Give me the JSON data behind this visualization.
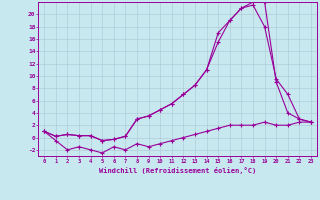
{
  "x": [
    0,
    1,
    2,
    3,
    4,
    5,
    6,
    7,
    8,
    9,
    10,
    11,
    12,
    13,
    14,
    15,
    16,
    17,
    18,
    19,
    20,
    21,
    22,
    23
  ],
  "line_main": [
    1.0,
    -0.5,
    -2.0,
    -1.5,
    -2.0,
    -2.5,
    -1.5,
    -2.0,
    -1.0,
    -1.5,
    -1.0,
    -0.5,
    0.0,
    0.5,
    1.0,
    1.5,
    2.0,
    2.0,
    2.0,
    2.5,
    2.0,
    2.0,
    2.5,
    2.5
  ],
  "line_mid": [
    1.0,
    0.2,
    0.5,
    0.3,
    0.3,
    -0.5,
    -0.3,
    0.2,
    3.0,
    3.5,
    4.5,
    5.5,
    7.0,
    8.5,
    11.0,
    15.5,
    19.0,
    21.0,
    22.0,
    22.0,
    9.0,
    4.0,
    3.0,
    2.5
  ],
  "line_top": [
    1.0,
    0.2,
    0.5,
    0.3,
    0.3,
    -0.5,
    -0.3,
    0.2,
    3.0,
    3.5,
    4.5,
    5.5,
    7.0,
    8.5,
    11.0,
    17.0,
    19.0,
    21.0,
    21.5,
    18.0,
    9.5,
    7.0,
    3.0,
    2.5
  ],
  "line_color": "#990099",
  "background_color": "#c8e8f0",
  "grid_color": "#b0ccd8",
  "xlabel": "Windchill (Refroidissement éolien,°C)",
  "xlim": [
    -0.5,
    23.5
  ],
  "ylim": [
    -3.0,
    22.0
  ],
  "xticks": [
    0,
    1,
    2,
    3,
    4,
    5,
    6,
    7,
    8,
    9,
    10,
    11,
    12,
    13,
    14,
    15,
    16,
    17,
    18,
    19,
    20,
    21,
    22,
    23
  ],
  "yticks": [
    -2,
    0,
    2,
    4,
    6,
    8,
    10,
    12,
    14,
    16,
    18,
    20
  ]
}
